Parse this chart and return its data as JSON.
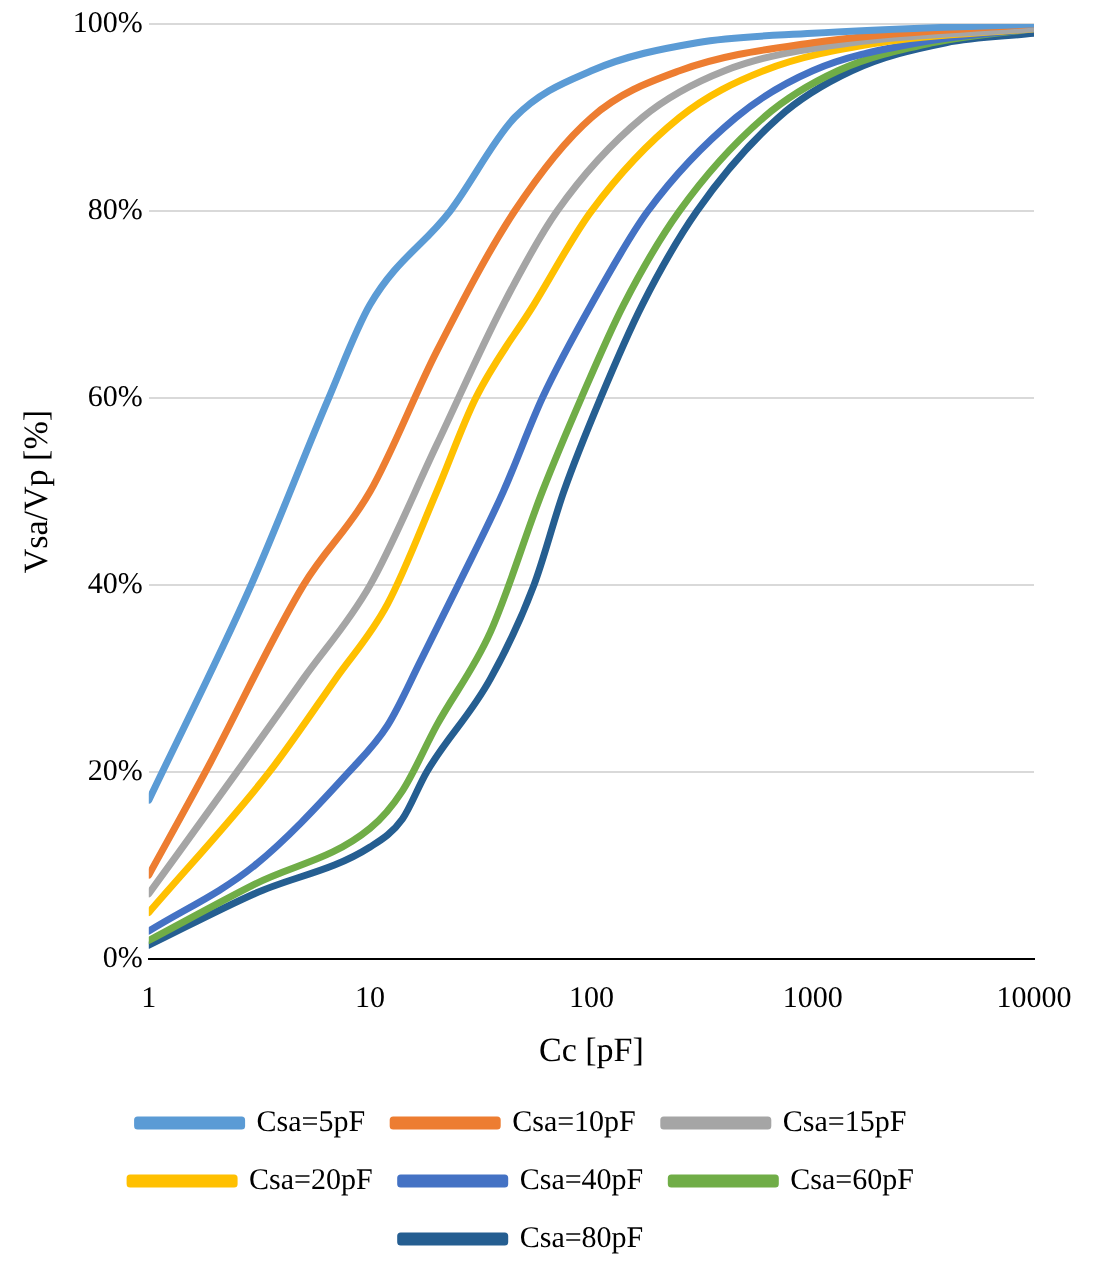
{
  "chart_data": {
    "type": "line",
    "xlabel": "Cc [pF]",
    "ylabel": "Vsa/Vp [%]",
    "log": "x",
    "xlim": [
      1,
      10000
    ],
    "xticks": [
      1,
      10,
      100,
      1000,
      10000
    ],
    "ylim": [
      0,
      100
    ],
    "yticks": [
      {
        "value": 0,
        "label": "0%"
      },
      {
        "value": 20,
        "label": "20%"
      },
      {
        "value": 40,
        "label": "40%"
      },
      {
        "value": 60,
        "label": "60%"
      },
      {
        "value": 80,
        "label": "80%"
      },
      {
        "value": 100,
        "label": "100%"
      }
    ],
    "grid": "y",
    "legend": "bottom",
    "marker": "none",
    "line_style": "solid",
    "series": [
      {
        "name": "Csa=5pF",
        "color": "#5b9bd5",
        "x": [
          1,
          2.9,
          6.5,
          10,
          23,
          45,
          100,
          300,
          1000,
          10000
        ],
        "values": [
          17,
          40,
          60,
          70,
          80,
          90,
          95,
          98,
          99,
          100
        ]
      },
      {
        "name": "Csa=10pF",
        "color": "#ed7d31",
        "x": [
          1,
          1.8,
          5,
          10,
          20,
          45,
          100,
          250,
          1000,
          10000
        ],
        "values": [
          9,
          20,
          40,
          50,
          65,
          80,
          90,
          95,
          98,
          100
        ]
      },
      {
        "name": "Csa=15pF",
        "color": "#a5a5a5",
        "x": [
          1,
          2.5,
          5,
          10,
          20,
          40,
          70,
          170,
          400,
          1500,
          10000
        ],
        "values": [
          7,
          20,
          30,
          40,
          55,
          70,
          80,
          90,
          95,
          98,
          99.5
        ]
      },
      {
        "name": "Csa=20pF",
        "color": "#ffc000",
        "x": [
          1,
          3.5,
          7,
          12,
          20,
          30,
          55,
          100,
          250,
          600,
          2000,
          10000
        ],
        "values": [
          5,
          20,
          30,
          38,
          50,
          60,
          70,
          80,
          90,
          95,
          98,
          99.5
        ]
      },
      {
        "name": "Csa=40pF",
        "color": "#4472c4",
        "x": [
          1,
          3,
          8,
          12,
          17,
          25,
          40,
          60,
          100,
          180,
          450,
          1000,
          3000,
          10000
        ],
        "values": [
          3,
          10,
          20,
          25,
          32,
          40,
          50,
          60,
          70,
          80,
          90,
          95,
          98,
          99.5
        ]
      },
      {
        "name": "Csa=60pF",
        "color": "#70ad47",
        "x": [
          1,
          3,
          10,
          14,
          20,
          35,
          60,
          90,
          140,
          250,
          600,
          1300,
          3500,
          10000
        ],
        "values": [
          2,
          8,
          14,
          18,
          25,
          35,
          50,
          60,
          70,
          80,
          90,
          95,
          98,
          99.5
        ]
      },
      {
        "name": "Csa=80pF",
        "color": "#255e91",
        "x": [
          1,
          3,
          10,
          14,
          18,
          35,
          55,
          75,
          110,
          170,
          300,
          700,
          1500,
          4000,
          10000
        ],
        "values": [
          1.5,
          7,
          12,
          15,
          20,
          30,
          40,
          50,
          60,
          70,
          80,
          90,
          95,
          98,
          99
        ]
      }
    ]
  }
}
